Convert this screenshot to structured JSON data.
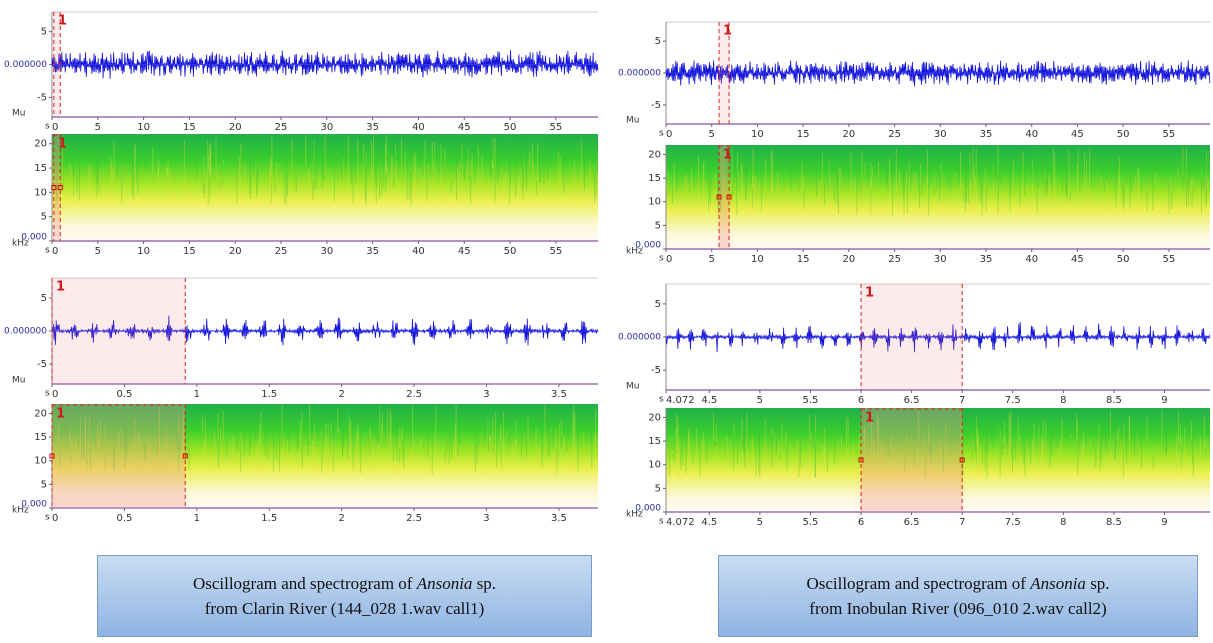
{
  "columns": [
    {
      "views": [
        {
          "xunit": "s",
          "xlim": [
            0,
            59.6
          ],
          "xticks": [
            0,
            5,
            10,
            15,
            20,
            25,
            30,
            35,
            40,
            45,
            50,
            55
          ],
          "selection": [
            0.2,
            0.9
          ],
          "selection_label": "1",
          "osc": {
            "unit": "Mu",
            "ylim": [
              -8,
              8
            ],
            "yticks": [
              5,
              {
                "value": 0,
                "label": "0.000000"
              },
              -5
            ]
          },
          "spec": {
            "unit": "kHz",
            "ylim": [
              0,
              22
            ],
            "yticks": [
              20,
              15,
              10,
              5,
              {
                "value": 0,
                "label": "0.000"
              }
            ]
          }
        },
        {
          "xunit": "s",
          "xlim": [
            0,
            3.77
          ],
          "xticks": [
            0,
            0.5,
            1,
            1.5,
            2,
            2.5,
            3,
            3.5
          ],
          "selection": [
            0,
            0.92
          ],
          "selection_label": "1",
          "osc": {
            "unit": "Mu",
            "ylim": [
              -8,
              8
            ],
            "yticks": [
              5,
              {
                "value": 0,
                "label": "0.000000"
              },
              -5
            ]
          },
          "spec": {
            "unit": "kHz",
            "ylim": [
              0,
              22
            ],
            "yticks": [
              20,
              15,
              10,
              5,
              {
                "value": 0,
                "label": "0.000"
              }
            ]
          }
        }
      ],
      "caption": {
        "line1_before": "Oscillogram and spectrogram of ",
        "line1_italic": "Ansonia",
        "line1_after": " sp.",
        "line2": "from Clarin River (144_028 1.wav call1)"
      }
    },
    {
      "views": [
        {
          "xunit": "s",
          "xlim": [
            0,
            59.5
          ],
          "xticks": [
            0,
            5,
            10,
            15,
            20,
            25,
            30,
            35,
            40,
            45,
            50,
            55
          ],
          "selection": [
            5.8,
            6.9
          ],
          "selection_label": "1",
          "osc": {
            "unit": "Mu",
            "ylim": [
              -8,
              8
            ],
            "yticks": [
              5,
              {
                "value": 0,
                "label": "0.000000"
              },
              -5
            ]
          },
          "spec": {
            "unit": "kHz",
            "ylim": [
              0,
              22
            ],
            "yticks": [
              20,
              15,
              10,
              5,
              {
                "value": 0,
                "label": "0.000"
              }
            ]
          }
        },
        {
          "xunit": "s",
          "xlim": [
            4.072,
            9.45
          ],
          "xticks": [
            4.072,
            4.5,
            5,
            5.5,
            6,
            6.5,
            7,
            7.5,
            8,
            8.5,
            9
          ],
          "selection": [
            6,
            7
          ],
          "selection_label": "1",
          "osc": {
            "unit": "Mu",
            "ylim": [
              -8,
              8
            ],
            "yticks": [
              5,
              {
                "value": 0,
                "label": "0.000000"
              },
              -5
            ]
          },
          "spec": {
            "unit": "kHz",
            "ylim": [
              0,
              22
            ],
            "yticks": [
              20,
              15,
              10,
              5,
              {
                "value": 0,
                "label": "0.000"
              }
            ]
          }
        }
      ],
      "caption": {
        "line1_before": "Oscillogram and spectrogram of ",
        "line1_italic": "Ansonia",
        "line1_after": " sp.",
        "line2": "from Inobulan River (096_010 2.wav call2)"
      }
    }
  ]
}
